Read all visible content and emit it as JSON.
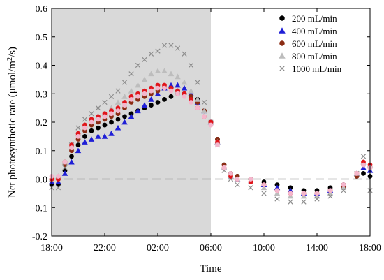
{
  "chart_data": {
    "type": "scatter",
    "xlabel": "Time",
    "ylabel": "Net photosynthetic rate (μmol/m²/s)",
    "ylim": [
      -0.2,
      0.6
    ],
    "yticks": [
      "-0.2",
      "-0.1",
      "0.0",
      "0.1",
      "0.2",
      "0.3",
      "0.4",
      "0.5",
      "0.6"
    ],
    "xlim": [
      0,
      24
    ],
    "x_unit": "hours after 18:00",
    "xticks": [
      {
        "value": 0,
        "label": "18:00"
      },
      {
        "value": 4,
        "label": "22:00"
      },
      {
        "value": 8,
        "label": "02:00"
      },
      {
        "value": 12,
        "label": "06:00"
      },
      {
        "value": 16,
        "label": "10:00"
      },
      {
        "value": 20,
        "label": "14:00"
      },
      {
        "value": 24,
        "label": "18:00"
      }
    ],
    "shaded_region": {
      "x_start": 0,
      "x_end": 12,
      "color": "#d9d9d9"
    },
    "reference_line": {
      "y": 0.0,
      "style": "dashed",
      "color": "#999999"
    },
    "legend_position": "top-right",
    "series": [
      {
        "name": "200 mL/min",
        "marker": "circle",
        "color": "#000000",
        "x": [
          0,
          0.5,
          1,
          1.5,
          2,
          2.5,
          3,
          3.5,
          4,
          4.5,
          5,
          5.5,
          6,
          6.5,
          7,
          7.5,
          8,
          8.5,
          9,
          9.5,
          10,
          10.5,
          11,
          11.5,
          12,
          12.5,
          13,
          13.5,
          14,
          15,
          16,
          17,
          18,
          19,
          20,
          21,
          22,
          23,
          23.5,
          24
        ],
        "y": [
          -0.02,
          -0.02,
          0.03,
          0.08,
          0.12,
          0.15,
          0.17,
          0.18,
          0.19,
          0.2,
          0.21,
          0.22,
          0.23,
          0.24,
          0.25,
          0.26,
          0.27,
          0.28,
          0.29,
          0.3,
          0.3,
          0.29,
          0.28,
          0.24,
          0.2,
          0.14,
          0.05,
          0.02,
          0.01,
          0.0,
          -0.01,
          -0.02,
          -0.03,
          -0.04,
          -0.04,
          -0.03,
          -0.02,
          0.01,
          0.02,
          0.01
        ]
      },
      {
        "name": "400 mL/min",
        "marker": "triangle",
        "color": "#1f1fd6",
        "x": [
          0,
          0.5,
          1,
          1.5,
          2,
          2.5,
          3,
          3.5,
          4,
          4.5,
          5,
          5.5,
          6,
          6.5,
          7,
          7.5,
          8,
          8.5,
          9,
          9.5,
          10,
          10.5,
          11,
          11.5,
          12,
          12.5,
          13,
          13.5,
          14,
          15,
          16,
          17,
          18,
          19,
          20,
          21,
          22,
          23,
          23.5,
          24
        ],
        "y": [
          -0.01,
          -0.01,
          0.02,
          0.06,
          0.1,
          0.13,
          0.14,
          0.15,
          0.15,
          0.16,
          0.18,
          0.2,
          0.22,
          0.24,
          0.26,
          0.28,
          0.3,
          0.32,
          0.33,
          0.33,
          0.32,
          0.3,
          0.27,
          0.24,
          0.2,
          0.13,
          0.04,
          0.01,
          0.0,
          -0.01,
          -0.02,
          -0.03,
          -0.04,
          -0.05,
          -0.05,
          -0.04,
          -0.02,
          0.02,
          0.04,
          0.03
        ]
      },
      {
        "name": "600 mL/min",
        "marker": "circle",
        "color": "#8b2c14",
        "x": [
          0,
          0.5,
          1,
          1.5,
          2,
          2.5,
          3,
          3.5,
          4,
          4.5,
          5,
          5.5,
          6,
          6.5,
          7,
          7.5,
          8,
          8.5,
          9,
          9.5,
          10,
          10.5,
          11,
          11.5,
          12,
          12.5,
          13,
          13.5,
          14,
          15,
          16,
          17,
          18,
          19,
          20,
          21,
          22,
          23,
          23.5,
          24
        ],
        "y": [
          0.0,
          0.0,
          0.05,
          0.1,
          0.14,
          0.17,
          0.19,
          0.2,
          0.21,
          0.22,
          0.23,
          0.25,
          0.27,
          0.28,
          0.29,
          0.3,
          0.31,
          0.32,
          0.32,
          0.31,
          0.3,
          0.29,
          0.27,
          0.24,
          0.2,
          0.14,
          0.05,
          0.02,
          0.01,
          0.0,
          -0.02,
          -0.04,
          -0.05,
          -0.05,
          -0.05,
          -0.04,
          -0.03,
          0.01,
          0.05,
          0.04
        ]
      },
      {
        "name": "800 mL/min",
        "marker": "triangle",
        "color": "#bdbdbd",
        "x": [
          0,
          0.5,
          1,
          1.5,
          2,
          2.5,
          3,
          3.5,
          4,
          4.5,
          5,
          5.5,
          6,
          6.5,
          7,
          7.5,
          8,
          8.5,
          9,
          9.5,
          10,
          10.5,
          11,
          11.5,
          12,
          12.5,
          13,
          13.5,
          14,
          15,
          16,
          17,
          18,
          19,
          20,
          21,
          22,
          23,
          23.5,
          24
        ],
        "y": [
          0.0,
          0.01,
          0.06,
          0.12,
          0.16,
          0.19,
          0.21,
          0.22,
          0.23,
          0.25,
          0.27,
          0.29,
          0.31,
          0.33,
          0.35,
          0.37,
          0.38,
          0.38,
          0.37,
          0.36,
          0.34,
          0.31,
          0.28,
          0.24,
          0.2,
          0.13,
          0.04,
          0.01,
          0.0,
          -0.01,
          -0.03,
          -0.05,
          -0.06,
          -0.06,
          -0.06,
          -0.05,
          -0.03,
          0.02,
          0.06,
          0.05
        ]
      },
      {
        "name": "1000 mL/min",
        "marker": "x",
        "color": "#8c8c8c",
        "x": [
          0,
          0.5,
          1,
          1.5,
          2,
          2.5,
          3,
          3.5,
          4,
          4.5,
          5,
          5.5,
          6,
          6.5,
          7,
          7.5,
          8,
          8.5,
          9,
          9.5,
          10,
          10.5,
          11,
          11.5,
          12,
          12.5,
          13,
          13.5,
          14,
          15,
          16,
          17,
          18,
          19,
          20,
          21,
          22,
          23,
          23.5,
          24
        ],
        "y": [
          -0.03,
          -0.03,
          0.04,
          0.12,
          0.18,
          0.21,
          0.23,
          0.25,
          0.27,
          0.29,
          0.31,
          0.34,
          0.37,
          0.4,
          0.42,
          0.44,
          0.45,
          0.47,
          0.47,
          0.46,
          0.44,
          0.4,
          0.34,
          0.27,
          0.2,
          0.12,
          0.03,
          0.0,
          -0.02,
          -0.03,
          -0.05,
          -0.07,
          -0.08,
          -0.08,
          -0.07,
          -0.06,
          -0.04,
          0.02,
          0.08,
          -0.04
        ]
      },
      {
        "name": "",
        "marker": "circle",
        "color": "#e0141a",
        "x": [
          0,
          0.5,
          1,
          1.5,
          2,
          2.5,
          3,
          3.5,
          4,
          4.5,
          5,
          5.5,
          6,
          6.5,
          7,
          7.5,
          8,
          8.5,
          9,
          9.5,
          10,
          10.5,
          11,
          11.5,
          12,
          12.5,
          13,
          13.5,
          14,
          15,
          16,
          17,
          18,
          19,
          20,
          21,
          22,
          23,
          23.5,
          24
        ],
        "y": [
          0.0,
          0.0,
          0.06,
          0.12,
          0.16,
          0.19,
          0.21,
          0.22,
          0.23,
          0.24,
          0.25,
          0.27,
          0.29,
          0.3,
          0.31,
          0.32,
          0.33,
          0.33,
          0.32,
          0.31,
          0.3,
          0.28,
          0.25,
          0.22,
          0.2,
          0.13,
          0.04,
          0.01,
          0.0,
          -0.01,
          -0.02,
          -0.04,
          -0.05,
          -0.05,
          -0.05,
          -0.04,
          -0.02,
          0.02,
          0.06,
          0.05
        ]
      },
      {
        "name": "",
        "marker": "circle",
        "color": "#f4b6cc",
        "x": [
          0,
          0.5,
          1,
          1.5,
          2,
          2.5,
          3,
          3.5,
          4,
          4.5,
          5,
          5.5,
          6,
          6.5,
          7,
          7.5,
          8,
          8.5,
          9,
          9.5,
          10,
          10.5,
          11,
          11.5,
          12,
          12.5,
          13,
          13.5,
          14,
          15,
          16,
          17,
          18,
          19,
          20,
          21,
          22,
          23,
          23.5,
          24
        ],
        "y": [
          0.01,
          0.01,
          0.06,
          0.11,
          0.15,
          0.18,
          0.2,
          0.21,
          0.22,
          0.23,
          0.24,
          0.26,
          0.28,
          0.29,
          0.3,
          0.31,
          0.32,
          0.32,
          0.31,
          0.3,
          0.29,
          0.27,
          0.25,
          0.22,
          0.19,
          0.12,
          0.04,
          0.02,
          0.0,
          0.0,
          -0.02,
          -0.04,
          -0.05,
          -0.05,
          -0.05,
          -0.04,
          -0.02,
          0.02,
          0.05,
          0.04
        ]
      }
    ]
  }
}
